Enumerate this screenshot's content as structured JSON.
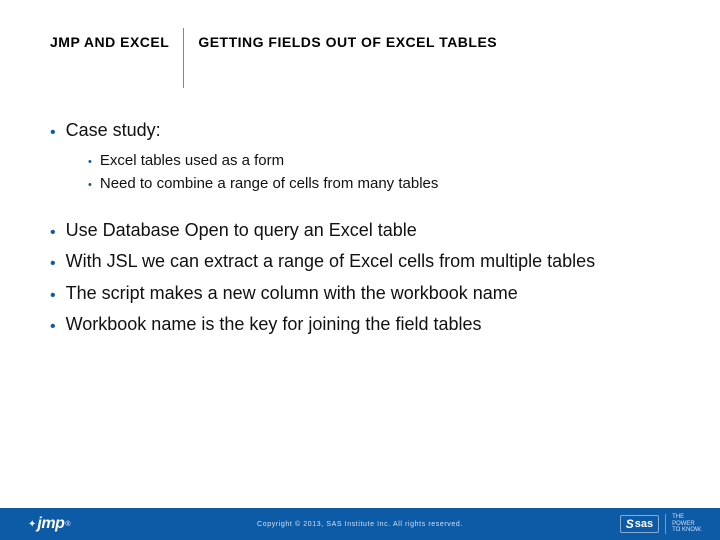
{
  "colors": {
    "accent": "#0d5aa7",
    "footer_bg": "#0d5aa7",
    "footer_text": "#cfe2f4",
    "text": "#111111",
    "bg": "#ffffff"
  },
  "header": {
    "left": "JMP AND EXCEL",
    "right": "GETTING FIELDS OUT OF EXCEL TABLES"
  },
  "bullets": {
    "b1": "Case study:",
    "b1_sub1": "Excel tables used as a form",
    "b1_sub2": "Need to combine a range of cells from many tables",
    "b2": "Use Database Open to query an Excel table",
    "b3": "With JSL we can extract a range of Excel cells from multiple tables",
    "b4": "The script makes a new column with the workbook name",
    "b5": "Workbook name is the key for joining the field tables"
  },
  "footer": {
    "copyright": "Copyright © 2013, SAS Institute Inc. All rights reserved.",
    "logo_left": "jmp",
    "logo_left_reg": "®",
    "sas_s": "S",
    "sas_text": "sas",
    "tagline_l1": "THE",
    "tagline_l2": "POWER",
    "tagline_l3": "TO KNOW."
  }
}
